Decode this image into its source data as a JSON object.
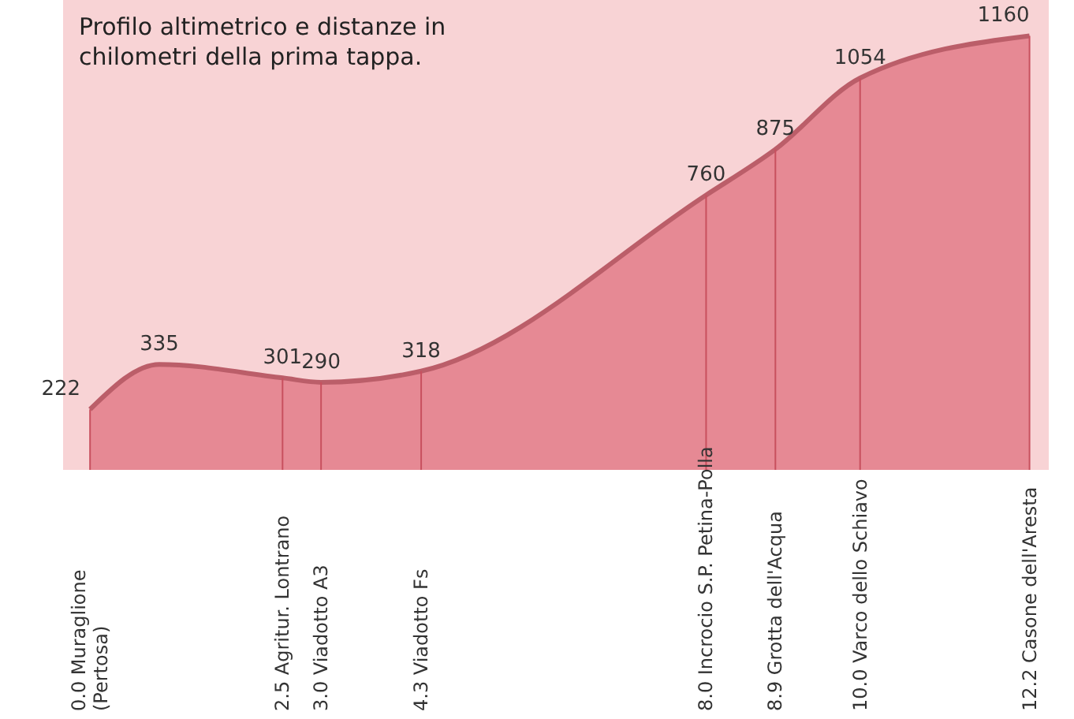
{
  "chart_data": {
    "type": "area",
    "title": "Profilo altimetrico e distanze in\nchilometri della prima tappa.",
    "x": [
      0,
      0.9,
      2.5,
      3.0,
      4.3,
      8.0,
      8.9,
      10.0,
      12.2
    ],
    "values": [
      222,
      335,
      301,
      290,
      318,
      760,
      875,
      1054,
      1160
    ],
    "color": "#e0707e",
    "data_labels": true,
    "xlim": [
      -0.35,
      12.45
    ],
    "ylim": [
      70,
      1250
    ],
    "xticks": [
      {
        "value": 0,
        "label": "0.0 Muraglione\n(Pertosa)"
      },
      {
        "value": 2.5,
        "label": "2.5 Agritur. Lontrano"
      },
      {
        "value": 3.0,
        "label": "3.0 Viadotto A3"
      },
      {
        "value": 4.3,
        "label": "4.3 Viadotto Fs"
      },
      {
        "value": 8.0,
        "label": "8.0 Incrocio S.P. Petina-Polla"
      },
      {
        "value": 8.9,
        "label": "8.9 Grotta dell'Acqua"
      },
      {
        "value": 10.0,
        "label": "10.0 Varco dello Schiavo"
      },
      {
        "value": 12.2,
        "label": "12.2 Casone dell'Aresta"
      }
    ],
    "tick_labels": "x",
    "grid": "x"
  }
}
